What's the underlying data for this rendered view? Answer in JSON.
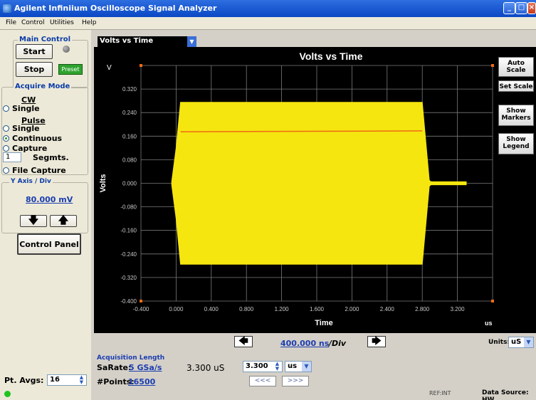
{
  "window": {
    "title": "Agilent Infiniium Oscilloscope Signal Analyzer"
  },
  "menu": [
    "File",
    "Control",
    "Utilities",
    "Help"
  ],
  "main_control": {
    "legend": "Main Control",
    "start": "Start",
    "stop": "Stop",
    "preset": "Preset"
  },
  "acquire_mode": {
    "legend": "Acquire Mode",
    "cw_label": "CW",
    "cw_single": "Single",
    "pulse_label": "Pulse",
    "pulse_single": "Single",
    "continuous": "Continuous",
    "capture": "Capture",
    "segments_value": "1",
    "segments_label": "Segmts.",
    "file_capture": "File Capture",
    "selected": "Continuous"
  },
  "y_axis": {
    "legend": "Y Axis / Div",
    "value": "80.000 mV"
  },
  "control_panel": "Control Panel",
  "pt_avgs": {
    "label": "Pt. Avgs:",
    "value": "16"
  },
  "chart_selector": {
    "value": "Volts vs Time"
  },
  "side_buttons": {
    "auto_scale": "Auto Scale",
    "set_scale": "Set Scale",
    "show_markers": "Show Markers",
    "show_legend": "Show Legend"
  },
  "time_div": {
    "value": "400.000 ns",
    "suffix": "/Div"
  },
  "units": {
    "label": "Units:",
    "value": "uS"
  },
  "acquisition": {
    "legend": "Acquisition Length",
    "sarate_label": "SaRate:",
    "sarate_value": "5 GSa/s",
    "points_label": "#Points:",
    "points_value": "16500",
    "length_display": "3.300 uS",
    "length_value": "3.300",
    "length_unit": "us",
    "prev": "<<<",
    "next": ">>>"
  },
  "status": {
    "ref": "REF:INT",
    "data_source": "Data Source: HW"
  },
  "colors": {
    "signal": "#f5e60f",
    "trace": "#f06a14",
    "plot_bg": "#000000",
    "grid": "#7a7a7a",
    "titlebar": "#0a48c4"
  },
  "chart_data": {
    "type": "area",
    "title": "Volts vs Time",
    "xlabel": "Time",
    "ylabel": "Volts",
    "x_unit": "us",
    "y_unit": "V",
    "xlim": [
      -0.4,
      3.6
    ],
    "ylim": [
      -0.4,
      0.4
    ],
    "xticks": [
      "-0.400",
      "0.000",
      "0.400",
      "0.800",
      "1.200",
      "1.600",
      "2.000",
      "2.400",
      "2.800",
      "3.200"
    ],
    "yticks": [
      "0.320",
      "0.240",
      "0.160",
      "0.080",
      "0.000",
      "-0.080",
      "-0.160",
      "-0.240",
      "-0.320",
      "-0.400"
    ],
    "grid": true,
    "series": [
      {
        "kind": "envelope",
        "color": "#f5e60f",
        "x": [
          -0.05,
          0.0,
          0.05,
          2.8,
          2.88,
          2.9,
          3.3
        ],
        "upper": [
          0.005,
          0.12,
          0.275,
          0.275,
          0.01,
          0.005,
          0.005
        ],
        "lower": [
          -0.005,
          -0.12,
          -0.275,
          -0.275,
          -0.01,
          -0.005,
          -0.005
        ]
      },
      {
        "kind": "line",
        "color": "#f06a14",
        "x": [
          0.05,
          2.8
        ],
        "y": [
          0.175,
          0.178
        ]
      }
    ]
  }
}
